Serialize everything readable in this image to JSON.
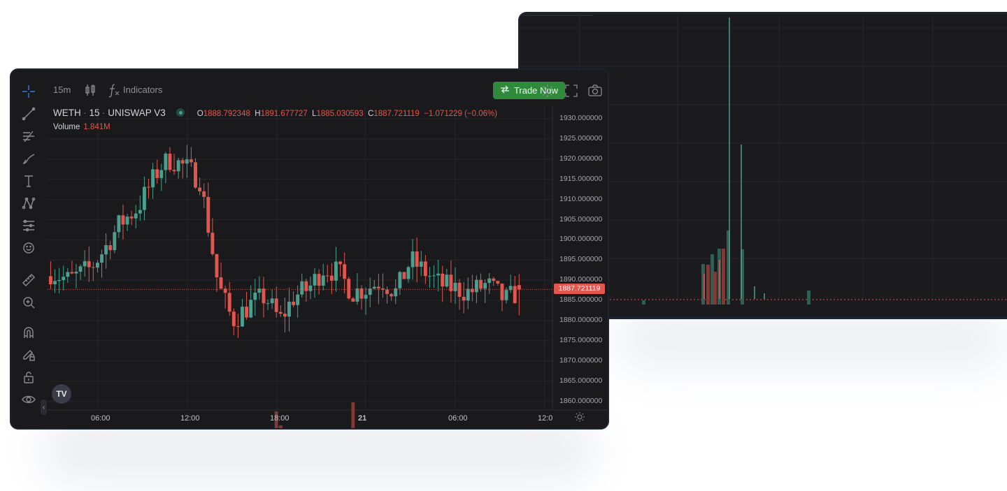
{
  "colors": {
    "up": "#4a9f8f",
    "down": "#e1574f",
    "background": "#1a1a1c",
    "trade_button": "#2f8a3c"
  },
  "toolbar": {
    "interval": "15m",
    "indicators_label": "Indicators",
    "trade_button_label": "Trade Now",
    "icons": [
      "candles-icon",
      "fx-icon",
      "swap-icon",
      "gear-icon",
      "fullscreen-icon",
      "camera-icon"
    ]
  },
  "left_tools": [
    "crosshair-icon",
    "trend-line-icon",
    "fib-icon",
    "brush-icon",
    "text-icon",
    "pattern-icon",
    "prediction-icon",
    "emoji-icon",
    "ruler-icon",
    "zoom-in-icon",
    "magnet-icon",
    "lock-drawing-icon",
    "lock-icon",
    "eye-icon"
  ],
  "legend": {
    "symbol": "WETH",
    "interval": "15",
    "exchange": "UNISWAP V3",
    "open_label": "O",
    "open": "1888.792348",
    "high_label": "H",
    "high": "1891.677727",
    "low_label": "L",
    "low": "1885.030593",
    "close_label": "C",
    "close": "1887.721119",
    "change": "−1.071229 (−0.06%)",
    "volume_label": "Volume",
    "volume_value": "1.841M"
  },
  "price_axis": {
    "labels": [
      "1930.000000",
      "1925.000000",
      "1920.000000",
      "1915.000000",
      "1910.000000",
      "1905.000000",
      "1900.000000",
      "1895.000000",
      "1890.000000",
      "1885.000000",
      "1880.000000",
      "1875.000000",
      "1870.000000",
      "1865.000000",
      "1860.000000"
    ],
    "last_price": "1887.721119"
  },
  "time_axis": [
    "06:00",
    "12:00",
    "18:00",
    "21",
    "06:00",
    "12:0"
  ],
  "logo_text": "TV",
  "chart_data": {
    "type": "candlestick",
    "ylim": [
      1858,
      1933
    ],
    "last_price": 1887.721119,
    "seed": 7
  }
}
